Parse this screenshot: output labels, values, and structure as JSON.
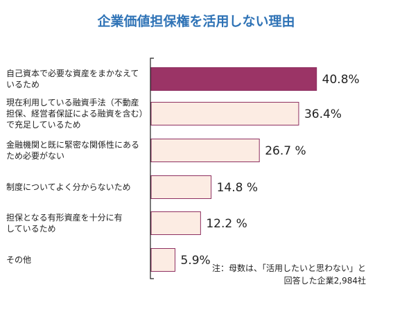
{
  "colors": {
    "title": "#2f73b6",
    "highlight_fill": "#9b3466",
    "bar_fill": "#fcece3",
    "bar_stroke": "#8e2f60",
    "axis": "#222222"
  },
  "chart_data": {
    "type": "bar",
    "orientation": "horizontal",
    "title": "企業価値担保権を活用しない理由",
    "categories": [
      [
        "自己資本で必要な資産をまかなえて",
        "いるため"
      ],
      [
        "現在利用している融資手法（不動産",
        "担保、経営者保証による融資を含む）",
        "で充足しているため"
      ],
      [
        "金融機関と既に緊密な関係性にある",
        "ため必要がない"
      ],
      [
        "制度についてよく分からないため"
      ],
      [
        "担保となる有形資産を十分に有",
        "しているため"
      ],
      [
        "その他"
      ]
    ],
    "values": [
      40.8,
      36.4,
      26.7,
      14.8,
      12.2,
      5.9
    ],
    "value_labels": [
      "40.8%",
      "36.4%",
      "26.7 %",
      "14.8 %",
      "12.2 %",
      "5.9%"
    ],
    "highlight_index": 0,
    "xlim": [
      0,
      100
    ],
    "note": [
      "注：母数は、「活用したいと思わない」と",
      "回答した企業2,984社"
    ]
  }
}
